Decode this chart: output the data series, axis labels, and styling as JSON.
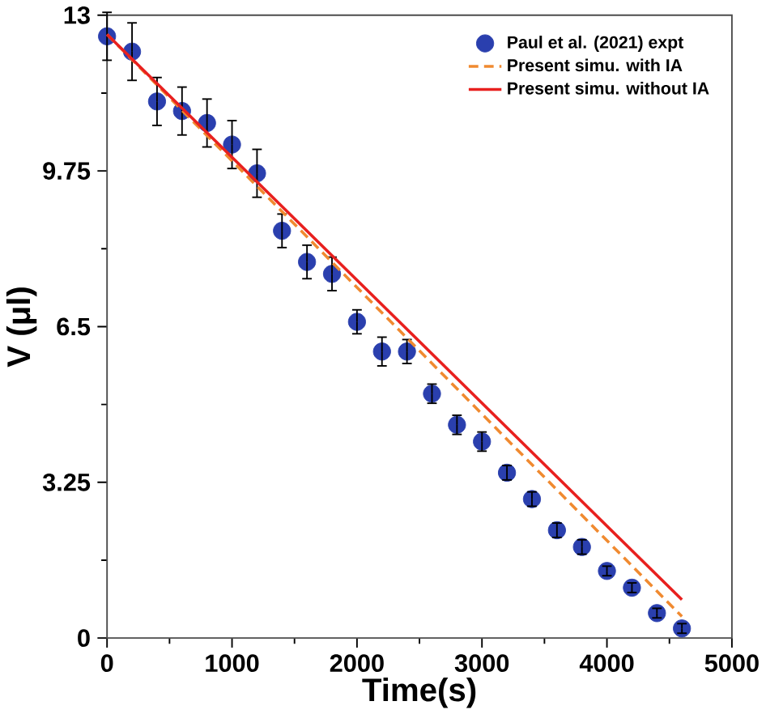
{
  "chart_data": {
    "type": "scatter",
    "xlabel": "Time(s)",
    "ylabel": "V (μl)",
    "xlim": [
      0,
      5000
    ],
    "ylim": [
      0,
      13
    ],
    "xticks": [
      0,
      1000,
      2000,
      3000,
      4000,
      5000
    ],
    "yticks": [
      0,
      3.25,
      6.5,
      9.75,
      13
    ],
    "legend": "top right",
    "grid": false,
    "series": [
      {
        "name": "Paul et al. (2021) expt",
        "marker": "circle",
        "color": "#2a3fae",
        "x": [
          0,
          200,
          400,
          600,
          800,
          1000,
          1200,
          1400,
          1600,
          1800,
          2000,
          2200,
          2400,
          2600,
          2800,
          3000,
          3200,
          3400,
          3600,
          3800,
          4000,
          4200,
          4400,
          4600
        ],
        "values": [
          12.56,
          12.24,
          11.2,
          11.0,
          10.75,
          10.3,
          9.7,
          8.5,
          7.85,
          7.6,
          6.6,
          5.98,
          5.98,
          5.1,
          4.45,
          4.1,
          3.45,
          2.9,
          2.25,
          1.9,
          1.4,
          1.05,
          0.52,
          0.2
        ],
        "errors": [
          0.5,
          0.6,
          0.5,
          0.5,
          0.5,
          0.5,
          0.5,
          0.35,
          0.35,
          0.35,
          0.25,
          0.3,
          0.25,
          0.2,
          0.2,
          0.2,
          0.15,
          0.15,
          0.15,
          0.15,
          0.1,
          0.1,
          0.1,
          0.1
        ]
      },
      {
        "name": "Present simu. with IA",
        "type": "line",
        "line_style": "dashed",
        "color": "#f08a30",
        "x": [
          0,
          4600
        ],
        "values": [
          12.6,
          0.45
        ]
      },
      {
        "name": "Present simu. without IA",
        "type": "line",
        "line_style": "solid",
        "color": "#e8201e",
        "x": [
          0,
          4600
        ],
        "values": [
          12.6,
          0.8
        ]
      }
    ]
  }
}
